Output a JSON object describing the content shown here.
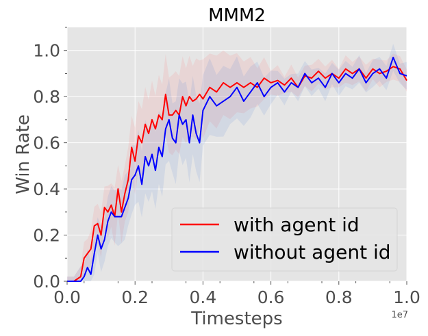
{
  "chart_data": {
    "type": "line",
    "title": "MMM2",
    "xlabel": "Timesteps",
    "ylabel": "Win Rate",
    "x_offset_label": "1e7",
    "xlim": [
      0.0,
      1.0
    ],
    "ylim": [
      0.0,
      1.1
    ],
    "xticks": [
      "0.0",
      "0.2",
      "0.4",
      "0.6",
      "0.8",
      "1.0"
    ],
    "yticks": [
      "0.0",
      "0.2",
      "0.4",
      "0.6",
      "0.8",
      "1.0"
    ],
    "grid": true,
    "legend_position": "lower-right",
    "series": [
      {
        "name": "with agent id",
        "color": "#ff0000",
        "x": [
          0.0,
          0.02,
          0.04,
          0.05,
          0.06,
          0.07,
          0.08,
          0.09,
          0.1,
          0.11,
          0.12,
          0.13,
          0.14,
          0.15,
          0.16,
          0.17,
          0.18,
          0.19,
          0.2,
          0.21,
          0.22,
          0.23,
          0.24,
          0.25,
          0.26,
          0.27,
          0.28,
          0.29,
          0.3,
          0.31,
          0.32,
          0.33,
          0.34,
          0.35,
          0.36,
          0.37,
          0.38,
          0.39,
          0.4,
          0.42,
          0.44,
          0.46,
          0.48,
          0.5,
          0.52,
          0.54,
          0.56,
          0.58,
          0.6,
          0.62,
          0.64,
          0.66,
          0.68,
          0.7,
          0.72,
          0.74,
          0.76,
          0.78,
          0.8,
          0.82,
          0.84,
          0.86,
          0.88,
          0.9,
          0.92,
          0.94,
          0.96,
          0.98,
          1.0
        ],
        "y": [
          0.0,
          0.0,
          0.02,
          0.1,
          0.12,
          0.14,
          0.24,
          0.25,
          0.2,
          0.32,
          0.3,
          0.33,
          0.28,
          0.4,
          0.3,
          0.38,
          0.44,
          0.58,
          0.52,
          0.63,
          0.6,
          0.68,
          0.64,
          0.7,
          0.66,
          0.72,
          0.7,
          0.81,
          0.72,
          0.72,
          0.74,
          0.72,
          0.8,
          0.76,
          0.8,
          0.78,
          0.79,
          0.81,
          0.79,
          0.84,
          0.82,
          0.86,
          0.84,
          0.86,
          0.84,
          0.86,
          0.84,
          0.88,
          0.86,
          0.87,
          0.85,
          0.88,
          0.84,
          0.89,
          0.88,
          0.91,
          0.88,
          0.9,
          0.88,
          0.92,
          0.9,
          0.92,
          0.88,
          0.92,
          0.9,
          0.91,
          0.93,
          0.92,
          0.87
        ]
      },
      {
        "name": "without agent id",
        "color": "#0000ff",
        "x": [
          0.0,
          0.02,
          0.04,
          0.05,
          0.06,
          0.07,
          0.08,
          0.09,
          0.1,
          0.11,
          0.12,
          0.13,
          0.14,
          0.15,
          0.16,
          0.17,
          0.18,
          0.19,
          0.2,
          0.21,
          0.22,
          0.23,
          0.24,
          0.25,
          0.26,
          0.27,
          0.28,
          0.29,
          0.3,
          0.31,
          0.32,
          0.33,
          0.34,
          0.35,
          0.36,
          0.37,
          0.38,
          0.39,
          0.4,
          0.42,
          0.44,
          0.46,
          0.48,
          0.5,
          0.52,
          0.54,
          0.56,
          0.58,
          0.6,
          0.62,
          0.64,
          0.66,
          0.68,
          0.7,
          0.72,
          0.74,
          0.76,
          0.78,
          0.8,
          0.82,
          0.84,
          0.86,
          0.88,
          0.9,
          0.92,
          0.94,
          0.96,
          0.98,
          1.0
        ],
        "y": [
          0.0,
          0.0,
          0.0,
          0.02,
          0.06,
          0.03,
          0.12,
          0.2,
          0.14,
          0.18,
          0.26,
          0.3,
          0.28,
          0.28,
          0.28,
          0.32,
          0.36,
          0.44,
          0.46,
          0.5,
          0.42,
          0.54,
          0.5,
          0.55,
          0.48,
          0.58,
          0.54,
          0.66,
          0.7,
          0.62,
          0.6,
          0.72,
          0.68,
          0.7,
          0.6,
          0.72,
          0.64,
          0.6,
          0.74,
          0.8,
          0.76,
          0.78,
          0.8,
          0.84,
          0.78,
          0.82,
          0.86,
          0.8,
          0.84,
          0.86,
          0.82,
          0.86,
          0.84,
          0.9,
          0.86,
          0.88,
          0.84,
          0.9,
          0.86,
          0.9,
          0.88,
          0.92,
          0.86,
          0.9,
          0.92,
          0.88,
          0.97,
          0.9,
          0.89
        ]
      }
    ]
  }
}
